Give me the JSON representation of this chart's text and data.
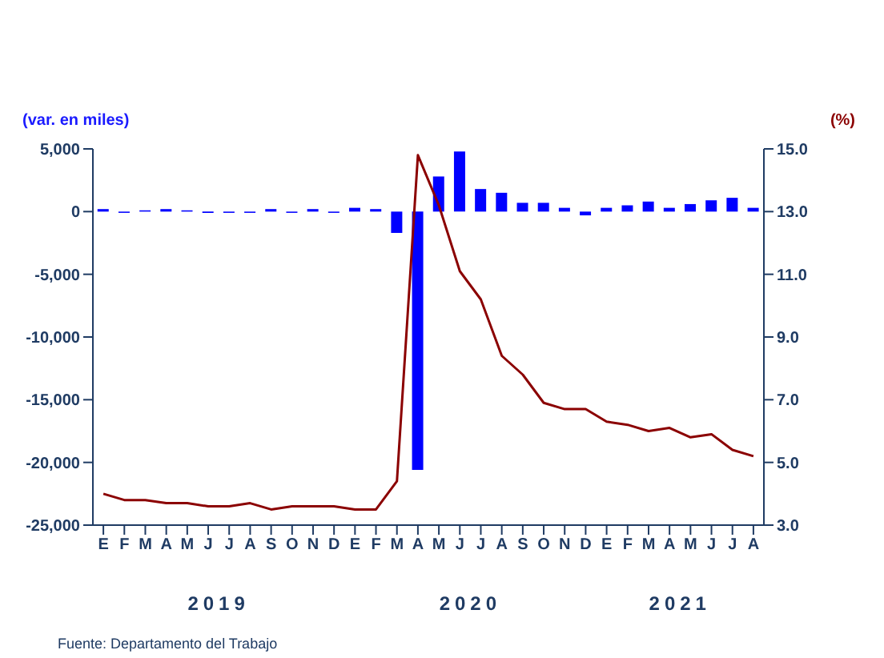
{
  "chart_data": {
    "type": "bar",
    "ylabel": "(var. en miles)",
    "y2label": "(%)",
    "categories": [
      "E",
      "F",
      "M",
      "A",
      "M",
      "J",
      "J",
      "A",
      "S",
      "O",
      "N",
      "D",
      "E",
      "F",
      "M",
      "A",
      "M",
      "J",
      "J",
      "A",
      "S",
      "O",
      "N",
      "D",
      "E",
      "F",
      "M",
      "A",
      "M",
      "J",
      "J",
      "A"
    ],
    "series": [
      {
        "color": "#0000ff",
        "values": [
          200,
          -100,
          100,
          200,
          100,
          -100,
          -100,
          -100,
          200,
          -100,
          200,
          -100,
          300,
          200,
          -1700,
          -20600,
          2800,
          4800,
          1800,
          1500,
          700,
          700,
          300,
          -300,
          300,
          500,
          800,
          300,
          600,
          900,
          1100,
          300
        ]
      },
      {
        "type": "line",
        "axis": "y2",
        "color": "#8b0000",
        "values": [
          4.0,
          3.8,
          3.8,
          3.7,
          3.7,
          3.6,
          3.6,
          3.7,
          3.5,
          3.6,
          3.6,
          3.6,
          3.5,
          3.5,
          4.4,
          14.8,
          13.2,
          11.1,
          10.2,
          8.4,
          7.8,
          6.9,
          6.7,
          6.7,
          6.3,
          6.2,
          6.0,
          6.1,
          5.8,
          5.9,
          5.4,
          5.2
        ]
      }
    ],
    "ylim": [
      -25000,
      5000
    ],
    "yticks": [
      {
        "value": -25000,
        "label": "-25,000"
      },
      {
        "value": -20000,
        "label": "-20,000"
      },
      {
        "value": -15000,
        "label": "-15,000"
      },
      {
        "value": -10000,
        "label": "-10,000"
      },
      {
        "value": -5000,
        "label": "-5,000"
      },
      0,
      {
        "value": 5000,
        "label": "5,000"
      }
    ],
    "y2lim": [
      3,
      15
    ],
    "y2ticks": [
      {
        "value": 3,
        "label": "3.0"
      },
      {
        "value": 5,
        "label": "5.0"
      },
      {
        "value": 7,
        "label": "7.0"
      },
      {
        "value": 9,
        "label": "9.0"
      },
      {
        "value": 11,
        "label": "11.0"
      },
      {
        "value": 13,
        "label": "13.0"
      },
      {
        "value": 15,
        "label": "15.0"
      }
    ],
    "grid": false,
    "legend": false,
    "marker": "none",
    "line_style": "solid",
    "annotations": [
      "2019",
      "2020",
      "2021",
      "Fuente: Departamento del Trabajo"
    ]
  }
}
